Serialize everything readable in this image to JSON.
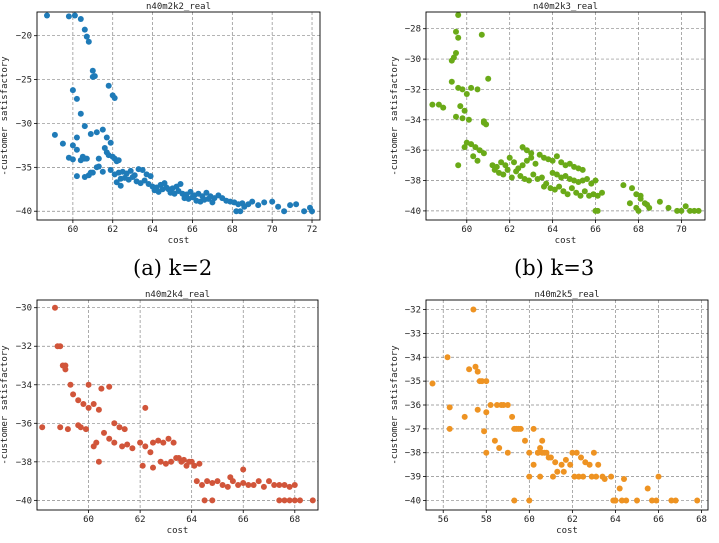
{
  "captions": {
    "a": "(a)  k=2",
    "b": "(b)  k=3"
  },
  "chart_data": [
    {
      "type": "scatter",
      "title": "n40m2k2_real",
      "xlabel": "cost",
      "ylabel": "-customer satisfactory",
      "color": "#1f7bb8",
      "grid": true,
      "xlim": [
        58.2,
        72.4
      ],
      "ylim": [
        -41,
        -17.3
      ],
      "xticks": [
        60,
        62,
        64,
        66,
        68,
        70,
        72
      ],
      "yticks": [
        -40,
        -35,
        -30,
        -25,
        -20
      ],
      "x": [
        58.7,
        59.8,
        60.1,
        60.4,
        60.6,
        60.7,
        60.8,
        61.0,
        61.0,
        61.1,
        60.0,
        60.2,
        60.4,
        60.6,
        60.2,
        60.9,
        61.2,
        60.0,
        60.2,
        60.5,
        60.7,
        59.1,
        59.5,
        59.8,
        60.0,
        60.4,
        60.6,
        61.3,
        60.8,
        61.0,
        61.8,
        62.0,
        62.1,
        61.5,
        61.7,
        61.9,
        61.6,
        61.7,
        61.8,
        62.0,
        62.1,
        62.2,
        62.3,
        61.3,
        61.5,
        60.6,
        60.2,
        60.9,
        61.2,
        61.9,
        62.1,
        62.3,
        62.5,
        62.7,
        62.9,
        63.1,
        63.3,
        63.5,
        63.7,
        63.9,
        62.4,
        62.6,
        62.8,
        63.0,
        63.2,
        63.4,
        62.2,
        62.4,
        63.6,
        63.8,
        64.0,
        64.2,
        64.4,
        64.6,
        64.8,
        65.0,
        65.2,
        65.4,
        64.1,
        64.3,
        64.5,
        64.7,
        64.9,
        65.1,
        65.3,
        65.5,
        65.7,
        65.9,
        66.1,
        66.3,
        66.5,
        66.7,
        66.9,
        67.1,
        67.3,
        65.6,
        65.8,
        66.0,
        66.2,
        66.4,
        66.6,
        66.8,
        67.0,
        67.5,
        67.7,
        67.9,
        68.1,
        68.3,
        68.5,
        68.2,
        68.4,
        68.6,
        68.8,
        69.0,
        69.3,
        69.6,
        70.0,
        70.3,
        70.6,
        70.9,
        71.2,
        71.6,
        71.9,
        72.0
      ],
      "y": [
        -17.7,
        -17.8,
        -17.7,
        -18.1,
        -19.3,
        -20.1,
        -20.7,
        -24.0,
        -24.7,
        -24.6,
        -26.2,
        -27.2,
        -28.9,
        -30.3,
        -31.6,
        -31.2,
        -31.0,
        -32.5,
        -33.0,
        -33.8,
        -34.0,
        -31.3,
        -32.3,
        -33.9,
        -34.1,
        -34.2,
        -34.0,
        -34.0,
        -35.9,
        -35.6,
        -25.7,
        -26.8,
        -27.1,
        -30.7,
        -31.6,
        -32.2,
        -32.8,
        -33.3,
        -33.6,
        -33.8,
        -34.0,
        -34.3,
        -34.2,
        -34.9,
        -35.5,
        -36.1,
        -36.0,
        -35.6,
        -35.0,
        -35.3,
        -35.8,
        -35.6,
        -35.5,
        -35.7,
        -35.4,
        -35.9,
        -35.2,
        -35.3,
        -35.8,
        -36.0,
        -36.3,
        -36.2,
        -36.4,
        -36.1,
        -36.6,
        -36.8,
        -36.7,
        -37.1,
        -36.5,
        -36.9,
        -37.2,
        -37.3,
        -37.0,
        -36.8,
        -37.5,
        -37.4,
        -37.2,
        -36.9,
        -37.6,
        -37.8,
        -37.5,
        -37.3,
        -37.9,
        -38.0,
        -37.7,
        -38.0,
        -38.1,
        -37.8,
        -38.2,
        -38.0,
        -38.3,
        -37.9,
        -38.3,
        -38.5,
        -38.2,
        -38.5,
        -38.6,
        -38.4,
        -38.8,
        -38.9,
        -38.7,
        -38.6,
        -39.0,
        -38.5,
        -38.8,
        -38.9,
        -39.0,
        -39.2,
        -39.1,
        -40.0,
        -40.0,
        -39.5,
        -39.2,
        -38.9,
        -39.3,
        -39.0,
        -38.9,
        -39.5,
        -40.0,
        -39.3,
        -39.2,
        -40.0,
        -39.6,
        -40.0
      ]
    },
    {
      "type": "scatter",
      "title": "n40m2k3_real",
      "xlabel": "cost",
      "ylabel": "-customer satisfactory",
      "color": "#6aaa18",
      "grid": true,
      "xlim": [
        58.1,
        71.1
      ],
      "ylim": [
        -40.6,
        -26.9
      ],
      "xticks": [
        60,
        62,
        64,
        66,
        68,
        70
      ],
      "yticks": [
        -40,
        -38,
        -36,
        -34,
        -32,
        -30,
        -28
      ],
      "x": [
        59.6,
        59.5,
        59.6,
        59.5,
        59.4,
        59.3,
        60.7,
        59.3,
        59.6,
        59.8,
        60.0,
        60.2,
        60.5,
        61.0,
        59.7,
        59.9,
        58.4,
        58.7,
        58.9,
        59.5,
        59.8,
        60.1,
        60.8,
        60.8,
        60.9,
        60.0,
        59.9,
        60.2,
        60.4,
        60.6,
        60.8,
        59.6,
        60.3,
        60.5,
        61.2,
        61.4,
        61.6,
        61.8,
        62.0,
        62.2,
        62.4,
        62.6,
        62.8,
        63.0,
        63.2,
        61.3,
        61.5,
        61.7,
        61.9,
        62.1,
        62.3,
        62.5,
        62.7,
        62.9,
        63.1,
        63.3,
        63.5,
        63.7,
        62.6,
        62.8,
        63.0,
        63.4,
        63.6,
        63.8,
        64.0,
        64.2,
        64.4,
        64.6,
        64.8,
        65.0,
        65.2,
        65.4,
        64.0,
        64.2,
        64.4,
        64.6,
        64.8,
        65.0,
        65.2,
        65.4,
        65.6,
        65.8,
        66.0,
        63.6,
        63.9,
        64.1,
        64.3,
        64.5,
        64.7,
        64.9,
        65.1,
        65.3,
        65.5,
        65.7,
        65.9,
        66.1,
        66.3,
        66.0,
        66.1,
        67.3,
        67.7,
        67.9,
        68.1,
        67.6,
        67.9,
        68.1,
        68.3,
        68.5,
        68.0,
        68.4,
        69.0,
        69.4,
        69.8,
        70.0,
        70.2,
        70.4,
        70.6,
        70.8
      ],
      "y": [
        -27.1,
        -28.2,
        -28.6,
        -29.6,
        -29.9,
        -30.1,
        -28.4,
        -31.5,
        -31.9,
        -32.0,
        -32.3,
        -31.9,
        -32.0,
        -31.3,
        -33.1,
        -33.4,
        -33.0,
        -33.0,
        -33.2,
        -33.8,
        -33.9,
        -34.0,
        -34.1,
        -34.2,
        -34.3,
        -35.5,
        -35.8,
        -35.6,
        -35.8,
        -36.0,
        -36.2,
        -37.0,
        -36.4,
        -36.7,
        -37.0,
        -37.1,
        -36.8,
        -37.0,
        -36.5,
        -36.8,
        -37.2,
        -37.0,
        -36.7,
        -36.5,
        -36.9,
        -37.3,
        -37.5,
        -37.6,
        -37.3,
        -37.8,
        -37.4,
        -37.7,
        -37.9,
        -38.0,
        -37.6,
        -37.9,
        -37.8,
        -38.2,
        -35.8,
        -36.0,
        -36.2,
        -36.3,
        -36.5,
        -36.6,
        -36.7,
        -36.4,
        -36.8,
        -37.0,
        -36.9,
        -37.1,
        -37.2,
        -37.3,
        -37.5,
        -37.6,
        -37.8,
        -37.7,
        -37.9,
        -38.0,
        -38.1,
        -38.0,
        -37.9,
        -38.2,
        -38.0,
        -38.4,
        -38.5,
        -38.6,
        -38.4,
        -38.7,
        -38.9,
        -38.5,
        -38.8,
        -39.0,
        -38.7,
        -39.0,
        -38.9,
        -39.0,
        -38.8,
        -40.0,
        -40.0,
        -38.3,
        -38.5,
        -38.9,
        -39.2,
        -39.5,
        -39.8,
        -39.0,
        -39.5,
        -39.8,
        -40.0,
        -39.6,
        -39.4,
        -39.8,
        -40.0,
        -40.0,
        -39.7,
        -40.0,
        -40.0,
        -40.0
      ]
    },
    {
      "type": "scatter",
      "title": "n40m2k4_real",
      "xlabel": "cost",
      "ylabel": "-customer satisfactory",
      "color": "#d1553a",
      "grid": true,
      "xlim": [
        58.0,
        68.9
      ],
      "ylim": [
        -40.5,
        -29.6
      ],
      "xticks": [
        60,
        62,
        64,
        66,
        68
      ],
      "yticks": [
        -40,
        -38,
        -36,
        -34,
        -32,
        -30
      ],
      "x": [
        58.7,
        58.8,
        58.9,
        59.0,
        59.1,
        59.1,
        59.3,
        58.2,
        58.9,
        59.2,
        59.4,
        59.6,
        59.8,
        60.0,
        59.7,
        59.9,
        60.0,
        59.6,
        60.2,
        60.4,
        60.8,
        60.5,
        60.2,
        60.4,
        61.0,
        61.2,
        61.4,
        60.6,
        60.8,
        61.0,
        61.3,
        60.3,
        61.5,
        61.7,
        62.0,
        62.2,
        62.4,
        62.5,
        62.8,
        63.0,
        63.2,
        63.4,
        63.6,
        63.8,
        64.0,
        62.2,
        62.7,
        62.9,
        63.1,
        63.3,
        63.5,
        63.7,
        63.9,
        64.1,
        64.3,
        62.1,
        62.5,
        64.2,
        64.4,
        64.6,
        64.8,
        65.0,
        65.2,
        65.4,
        65.6,
        65.8,
        66.0,
        66.2,
        66.4,
        64.5,
        64.8,
        66.6,
        66.8,
        67.0,
        67.2,
        67.4,
        67.6,
        67.8,
        68.0,
        67.4,
        67.6,
        67.8,
        68.0,
        68.2,
        68.7,
        66.0,
        65.5
      ],
      "y": [
        -30.0,
        -32.0,
        -32.0,
        -33.0,
        -33.2,
        -33.0,
        -34.0,
        -36.2,
        -36.2,
        -36.3,
        -34.5,
        -34.8,
        -35.0,
        -35.2,
        -36.2,
        -36.3,
        -34.0,
        -36.1,
        -35.0,
        -35.3,
        -34.1,
        -34.2,
        -37.2,
        -38.0,
        -36.0,
        -36.2,
        -36.3,
        -36.5,
        -36.8,
        -37.0,
        -37.2,
        -37.0,
        -37.1,
        -37.3,
        -37.0,
        -37.2,
        -37.5,
        -37.0,
        -38.0,
        -38.1,
        -38.0,
        -37.8,
        -38.0,
        -38.2,
        -38.0,
        -35.2,
        -36.9,
        -37.0,
        -36.8,
        -37.0,
        -37.8,
        -37.9,
        -38.0,
        -38.2,
        -38.1,
        -38.2,
        -38.3,
        -39.0,
        -39.2,
        -39.0,
        -39.1,
        -39.0,
        -39.2,
        -39.3,
        -39.0,
        -39.2,
        -39.1,
        -39.2,
        -39.2,
        -40.0,
        -40.0,
        -39.0,
        -39.3,
        -39.0,
        -39.2,
        -39.2,
        -39.2,
        -39.3,
        -39.2,
        -40.0,
        -40.0,
        -40.0,
        -40.0,
        -40.0,
        -40.0,
        -38.4,
        -38.8
      ]
    },
    {
      "type": "scatter",
      "title": "n40m2k5_real",
      "xlabel": "cost",
      "ylabel": "-customer satisfactory",
      "color": "#ee9322",
      "grid": true,
      "xlim": [
        55.2,
        68.3
      ],
      "ylim": [
        -40.4,
        -31.6
      ],
      "xticks": [
        56,
        58,
        60,
        62,
        64,
        66,
        68
      ],
      "yticks": [
        -40,
        -39,
        -38,
        -37,
        -36,
        -35,
        -34,
        -33,
        -32
      ],
      "x": [
        55.5,
        56.2,
        56.3,
        56.3,
        57.0,
        57.2,
        57.4,
        57.5,
        57.6,
        57.7,
        57.8,
        58.0,
        57.6,
        58.0,
        58.2,
        58.5,
        58.7,
        57.9,
        58.0,
        58.8,
        59.0,
        59.2,
        59.4,
        59.6,
        58.4,
        58.6,
        59.0,
        59.3,
        59.5,
        59.8,
        60.0,
        60.2,
        60.4,
        60.6,
        60.0,
        60.2,
        60.4,
        60.6,
        60.8,
        61.0,
        61.2,
        60.5,
        60.7,
        60.9,
        61.1,
        61.3,
        61.5,
        61.7,
        61.9,
        62.1,
        62.3,
        62.5,
        62.0,
        62.2,
        62.4,
        62.6,
        62.8,
        63.0,
        63.2,
        63.4,
        61.6,
        62.9,
        63.1,
        63.5,
        63.8,
        64.0,
        64.2,
        64.4,
        64.3,
        64.0,
        64.5,
        65.0,
        65.5,
        66.0,
        65.7,
        65.9,
        66.6,
        66.8,
        67.8,
        63.9,
        59.3,
        60.0,
        60.5
      ],
      "y": [
        -35.1,
        -34.0,
        -36.1,
        -37.0,
        -36.5,
        -34.5,
        -32.0,
        -34.4,
        -34.6,
        -35.0,
        -35.0,
        -35.0,
        -36.2,
        -36.3,
        -36.0,
        -36.0,
        -36.0,
        -37.1,
        -38.0,
        -36.0,
        -36.0,
        -36.5,
        -37.0,
        -37.0,
        -37.5,
        -37.8,
        -38.0,
        -37.0,
        -37.0,
        -37.5,
        -38.0,
        -37.0,
        -38.0,
        -37.5,
        -39.0,
        -38.5,
        -38.0,
        -38.0,
        -38.0,
        -38.2,
        -38.4,
        -37.8,
        -38.0,
        -38.2,
        -39.0,
        -38.8,
        -38.5,
        -38.3,
        -38.5,
        -39.0,
        -39.0,
        -39.0,
        -38.0,
        -38.0,
        -38.2,
        -38.4,
        -38.5,
        -38.0,
        -38.5,
        -39.0,
        -38.8,
        -39.0,
        -39.0,
        -39.1,
        -39.0,
        -40.0,
        -39.5,
        -39.1,
        -40.0,
        -40.0,
        -40.0,
        -40.0,
        -39.5,
        -39.0,
        -40.0,
        -40.0,
        -40.0,
        -40.0,
        -40.0,
        -40.0,
        -40.0,
        -40.0,
        -39.0
      ]
    }
  ]
}
